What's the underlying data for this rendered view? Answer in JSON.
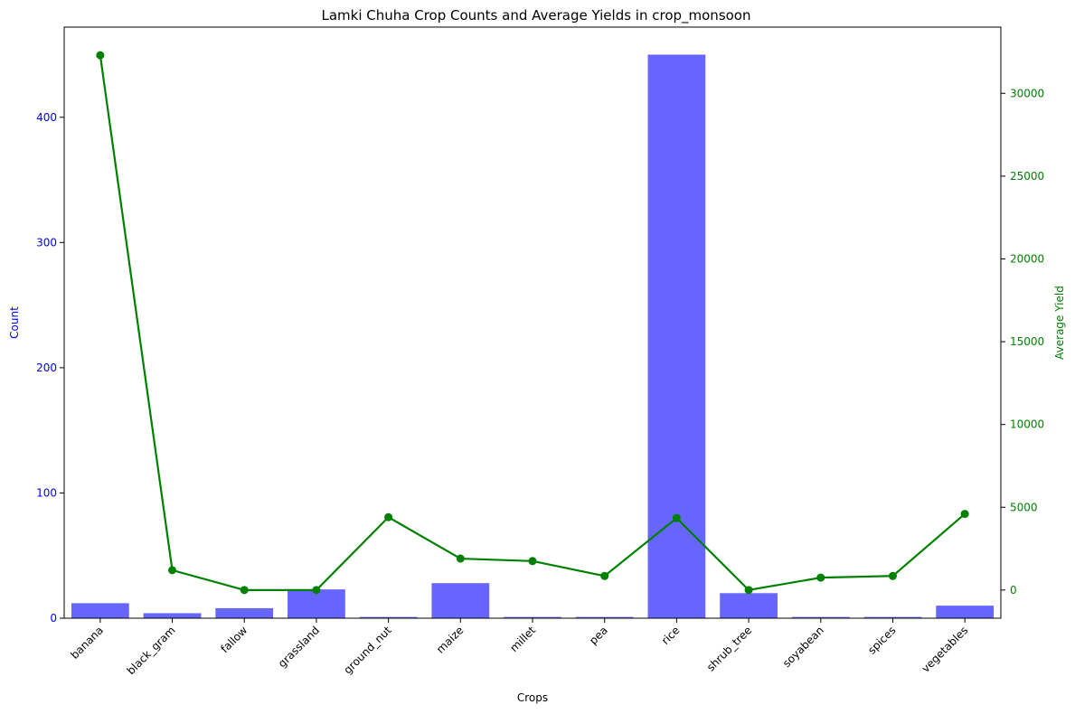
{
  "chart_data": {
    "type": "bar+line",
    "title": "Lamki Chuha Crop Counts and Average Yields in crop_monsoon",
    "xlabel": "Crops",
    "ylabel_left": "Count",
    "ylabel_right": "Average Yield",
    "categories": [
      "banana",
      "black_gram",
      "fallow",
      "grassland",
      "ground_nut",
      "maize",
      "millet",
      "pea",
      "rice",
      "shrub_tree",
      "soyabean",
      "spices",
      "vegetables"
    ],
    "series": [
      {
        "name": "Count",
        "type": "bar",
        "axis": "left",
        "color": "#6666ff",
        "values": [
          12,
          4,
          8,
          23,
          1,
          28,
          1,
          1,
          450,
          20,
          1,
          1,
          10
        ]
      },
      {
        "name": "Average Yield",
        "type": "line",
        "axis": "right",
        "color": "#008000",
        "values": [
          32300,
          1200,
          0,
          0,
          4400,
          1900,
          1750,
          850,
          4350,
          0,
          750,
          850,
          4600
        ]
      }
    ],
    "ylim_left": [
      0,
      472
    ],
    "ylim_right": [
      -1700,
      34000
    ],
    "yticks_left": [
      0,
      100,
      200,
      300,
      400
    ],
    "yticks_right": [
      0,
      5000,
      10000,
      15000,
      20000,
      25000,
      30000
    ],
    "left_axis_color": "#0000ff",
    "right_axis_color": "#008000",
    "grid": false
  }
}
